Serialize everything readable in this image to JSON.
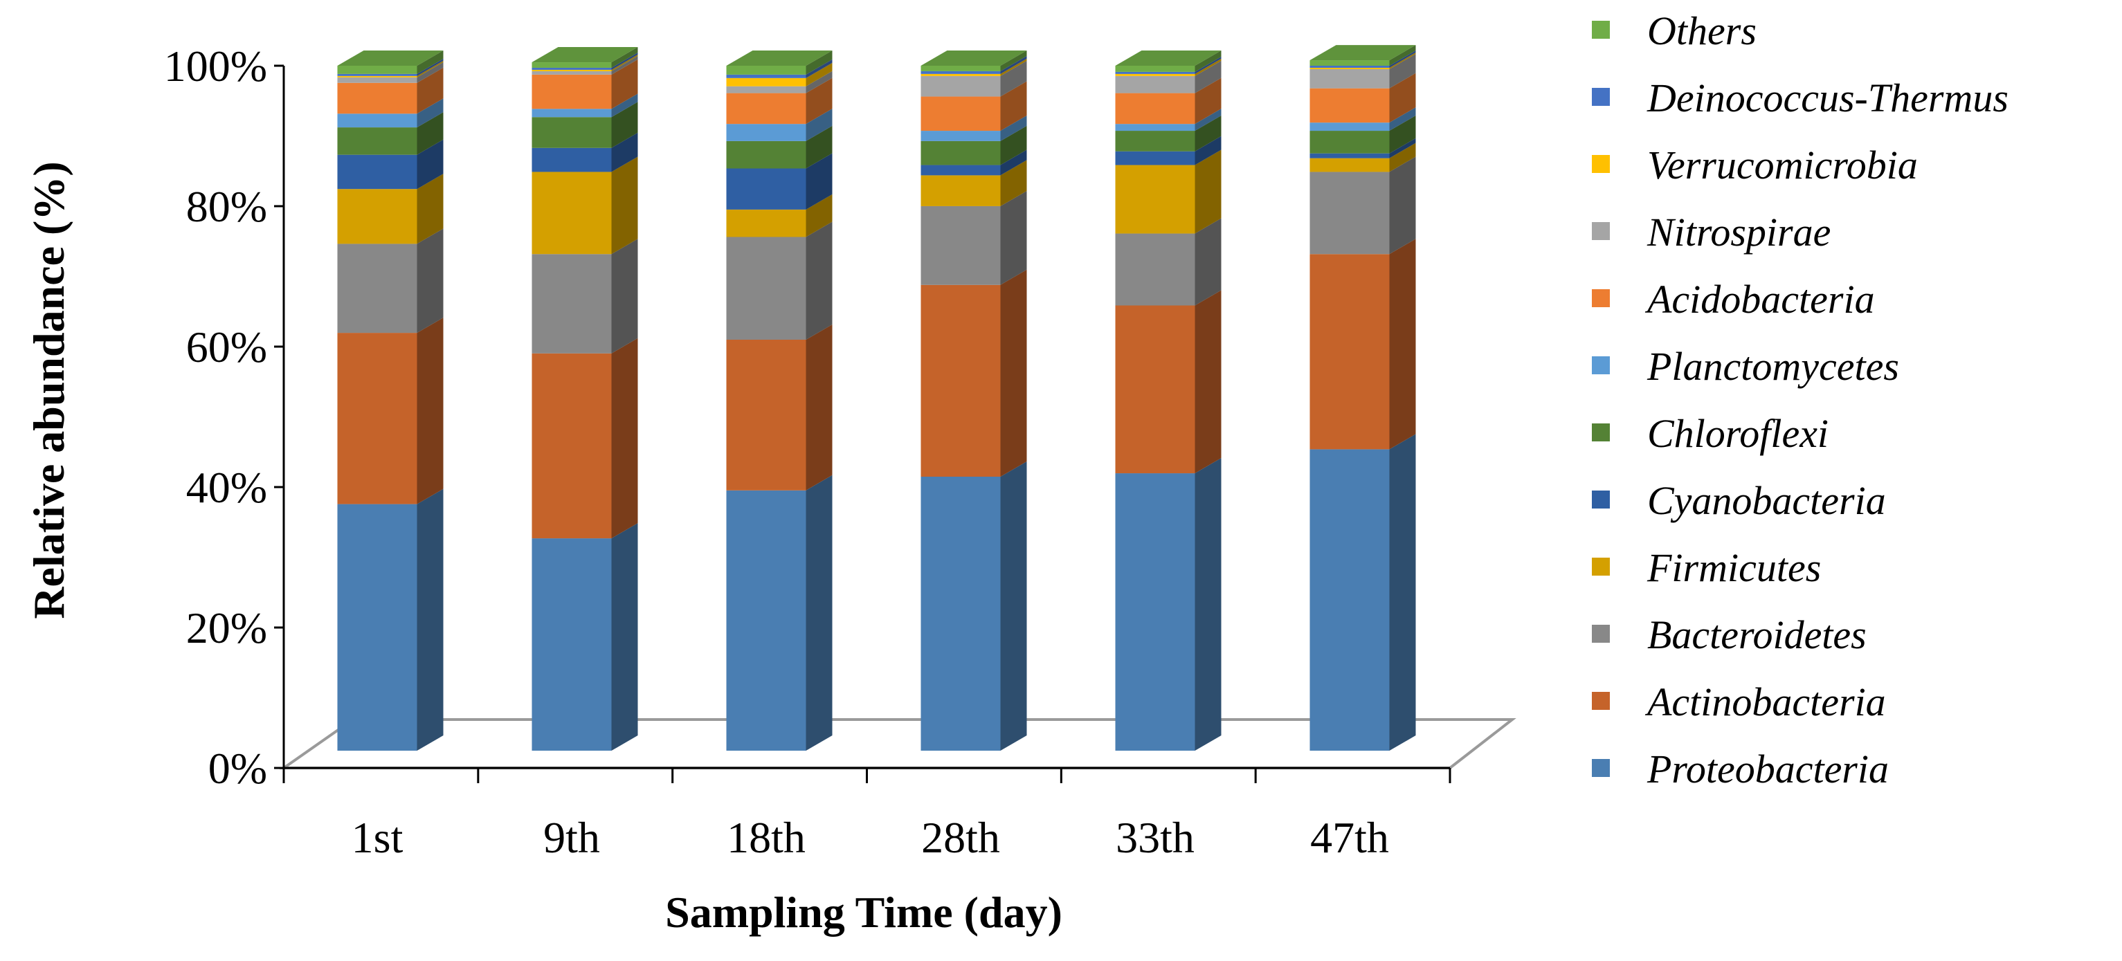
{
  "chart_data": {
    "type": "bar",
    "stacked": true,
    "style": "3d",
    "title": "",
    "xlabel": "Sampling Time (day)",
    "ylabel": "Relative abundance (%)",
    "ylim": [
      0,
      100
    ],
    "yticks": [
      0,
      20,
      40,
      60,
      80,
      100
    ],
    "ytick_labels": [
      "0%",
      "20%",
      "40%",
      "60%",
      "80%",
      "100%"
    ],
    "categories": [
      "1st",
      "9th",
      "18th",
      "28th",
      "33th",
      "47th"
    ],
    "legend_position": "right",
    "series": [
      {
        "name": "Proteobacteria",
        "color": "#4a7eb2",
        "values": [
          36,
          31,
          38,
          40,
          40.5,
          44
        ]
      },
      {
        "name": "Actinobacteria",
        "color": "#c5632a",
        "values": [
          25,
          27,
          22,
          28,
          24.5,
          28.5
        ]
      },
      {
        "name": "Bacteroidetes",
        "color": "#888888",
        "values": [
          13,
          14.5,
          15,
          11.5,
          10.5,
          12
        ]
      },
      {
        "name": "Firmicutes",
        "color": "#d4a000",
        "values": [
          8,
          12,
          4,
          4.5,
          10,
          2
        ]
      },
      {
        "name": "Cyanobacteria",
        "color": "#2f5fa3",
        "values": [
          5,
          3.5,
          6,
          1.5,
          2,
          0.7
        ]
      },
      {
        "name": "Chloroflexi",
        "color": "#548235",
        "values": [
          4,
          4.5,
          4,
          3.5,
          3,
          3.3
        ]
      },
      {
        "name": "Planctomycetes",
        "color": "#5b9bd5",
        "values": [
          2,
          1.2,
          2.5,
          1.5,
          1,
          1.2
        ]
      },
      {
        "name": "Acidobacteria",
        "color": "#ed7d31",
        "values": [
          4.5,
          5,
          4.5,
          5,
          4.5,
          5
        ]
      },
      {
        "name": "Nitrospirae",
        "color": "#a5a5a5",
        "values": [
          0.8,
          0.5,
          1,
          3,
          2.5,
          2.8
        ]
      },
      {
        "name": "Verrucomicrobia",
        "color": "#ffc000",
        "values": [
          0.2,
          0.2,
          1.2,
          0.3,
          0.3,
          0.2
        ]
      },
      {
        "name": "Deinococcus-Thermus",
        "color": "#4472c4",
        "values": [
          0.3,
          0.3,
          0.5,
          0.4,
          0.3,
          0.3
        ]
      },
      {
        "name": "Others",
        "color": "#70ad47",
        "values": [
          1.2,
          0.8,
          1.3,
          0.8,
          0.9,
          0.8
        ]
      }
    ]
  }
}
